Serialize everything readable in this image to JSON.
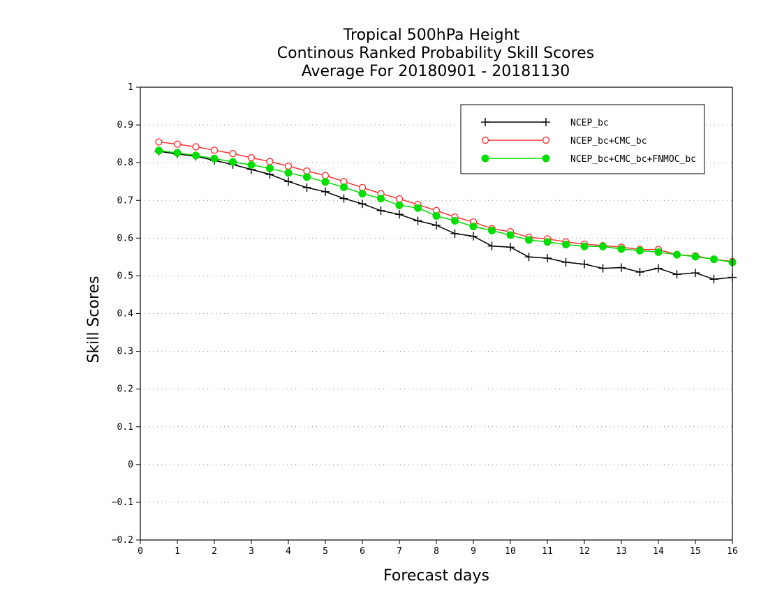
{
  "chart_data": {
    "type": "line",
    "title": [
      "Tropical 500hPa Height",
      "Continous Ranked Probability Skill Scores",
      "Average For 20180901 - 20181130"
    ],
    "xlabel": "Forecast days",
    "ylabel": "Skill Scores",
    "xlim": [
      0,
      16
    ],
    "ylim": [
      -0.2,
      1
    ],
    "xticks": [
      "0",
      "1",
      "2",
      "3",
      "4",
      "5",
      "6",
      "7",
      "8",
      "9",
      "10",
      "11",
      "12",
      "13",
      "14",
      "15",
      "16"
    ],
    "yticks": [
      "−0.2",
      "−0.1",
      "0",
      "0.1",
      "0.2",
      "0.3",
      "0.4",
      "0.5",
      "0.6",
      "0.7",
      "0.8",
      "0.9",
      "1"
    ],
    "grid": "horizontal dotted",
    "legend_position": "top-right",
    "x": [
      0.5,
      1,
      1.5,
      2,
      2.5,
      3,
      3.5,
      4,
      4.5,
      5,
      5.5,
      6,
      6.5,
      7,
      7.5,
      8,
      8.5,
      9,
      9.5,
      10,
      10.5,
      11,
      11.5,
      12,
      12.5,
      13,
      13.5,
      14,
      14.5,
      15,
      15.5,
      16
    ],
    "series": [
      {
        "name": "NCEP_bc",
        "color": "#000000",
        "marker": "plus",
        "values": [
          0.83,
          0.823,
          0.817,
          0.806,
          0.795,
          0.782,
          0.769,
          0.75,
          0.734,
          0.723,
          0.705,
          0.691,
          0.673,
          0.663,
          0.646,
          0.634,
          0.612,
          0.605,
          0.579,
          0.576,
          0.55,
          0.547,
          0.536,
          0.531,
          0.52,
          0.522,
          0.51,
          0.52,
          0.504,
          0.508,
          0.491,
          0.496
        ]
      },
      {
        "name": "NCEP_bc+CMC_bc",
        "color": "#ff3333",
        "marker": "open-circle",
        "values": [
          0.855,
          0.849,
          0.842,
          0.833,
          0.824,
          0.813,
          0.803,
          0.791,
          0.778,
          0.766,
          0.75,
          0.734,
          0.718,
          0.704,
          0.689,
          0.673,
          0.656,
          0.643,
          0.625,
          0.617,
          0.602,
          0.598,
          0.59,
          0.584,
          0.58,
          0.576,
          0.57,
          0.57,
          0.556,
          0.553,
          0.544,
          0.538
        ]
      },
      {
        "name": "NCEP_bc+CMC_bc+FNMOC_bc",
        "color": "#00dd00",
        "marker": "filled-circle",
        "values": [
          0.832,
          0.826,
          0.819,
          0.811,
          0.802,
          0.794,
          0.785,
          0.773,
          0.762,
          0.749,
          0.735,
          0.718,
          0.705,
          0.687,
          0.68,
          0.659,
          0.646,
          0.631,
          0.62,
          0.608,
          0.595,
          0.59,
          0.583,
          0.578,
          0.578,
          0.571,
          0.567,
          0.563,
          0.556,
          0.551,
          0.544,
          0.536
        ]
      }
    ]
  }
}
